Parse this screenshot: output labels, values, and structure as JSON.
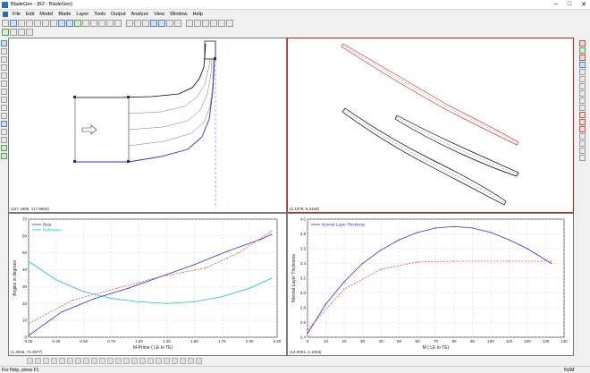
{
  "window": {
    "title": "BladeGen - [R2 - BladeGen]"
  },
  "menu": [
    "File",
    "Edit",
    "Model",
    "Blade",
    "Layer",
    "Tools",
    "Output",
    "Analyze",
    "View",
    "Window",
    "Help"
  ],
  "panes": {
    "meridional": {
      "coord": "(167.1695, 117.9694)"
    },
    "blade_to_blade": {
      "coord": "(2.1079, 0.3169)"
    }
  },
  "chart_data": [
    {
      "type": "line",
      "title": "",
      "xlabel": "M-Prime ( LE to TE)",
      "ylabel": "Angles in degrees",
      "coord": "(1.3046, 74.3677)",
      "xlim": [
        0,
        2.25
      ],
      "ylim": [
        0,
        70
      ],
      "xticks": [
        "0.00",
        "0.25",
        "0.50",
        "0.75",
        "1.00",
        "1.25",
        "1.50",
        "1.75",
        "2.00",
        "2.25"
      ],
      "yticks": [
        "0",
        "10",
        "20",
        "30",
        "40",
        "50",
        "60",
        "70"
      ],
      "grid": true,
      "legend_position": "top-left",
      "series": [
        {
          "name": "Beta",
          "color": "#3030d0",
          "x": [
            0,
            0.3,
            0.6,
            0.9,
            1.2,
            1.5,
            1.8,
            2.1,
            2.2
          ],
          "y": [
            1,
            15,
            23,
            29,
            36,
            43,
            51,
            58,
            61
          ]
        },
        {
          "name": "Reference",
          "color": "#20c0c0",
          "x": [
            0,
            0.25,
            0.5,
            0.75,
            1.0,
            1.25,
            1.5,
            1.75,
            2.0,
            2.2
          ],
          "y": [
            45,
            34,
            27,
            23,
            21,
            20,
            21,
            24,
            29,
            35
          ]
        },
        {
          "name": "",
          "color": "#e05050",
          "x": [
            0,
            0.4,
            0.8,
            1.2,
            1.6,
            1.9,
            2.2
          ],
          "y": [
            8,
            22,
            29,
            36,
            41,
            50,
            63
          ]
        }
      ]
    },
    {
      "type": "line",
      "title": "",
      "xlabel": "M ( LE to TE)",
      "ylabel": "Normal Layer Thickness",
      "coord": "(14.0001, 4.1003)",
      "xlim": [
        0,
        140
      ],
      "ylim": [
        2.4,
        4.0
      ],
      "xticks": [
        "0",
        "10",
        "20",
        "30",
        "40",
        "50",
        "60",
        "70",
        "80",
        "90",
        "100",
        "110",
        "120",
        "130",
        "140"
      ],
      "yticks": [
        "2.4",
        "2.6",
        "2.8",
        "3.0",
        "3.2",
        "3.4",
        "3.6",
        "3.8",
        "4.0"
      ],
      "grid": true,
      "legend_position": "top-left",
      "series": [
        {
          "name": "Normal Layer Thickness",
          "color": "#3030d0",
          "x": [
            0,
            10,
            20,
            30,
            40,
            50,
            60,
            70,
            80,
            90,
            100,
            110,
            120,
            133
          ],
          "y": [
            2.45,
            2.85,
            3.15,
            3.4,
            3.58,
            3.72,
            3.82,
            3.88,
            3.9,
            3.88,
            3.82,
            3.72,
            3.6,
            3.4
          ]
        },
        {
          "name": "",
          "color": "#e05050",
          "x": [
            0,
            20,
            40,
            60,
            80,
            110,
            133
          ],
          "y": [
            2.5,
            3.05,
            3.32,
            3.42,
            3.43,
            3.43,
            3.43
          ]
        }
      ]
    }
  ],
  "status": {
    "text": "For Help, press F1",
    "num": "NUM"
  }
}
